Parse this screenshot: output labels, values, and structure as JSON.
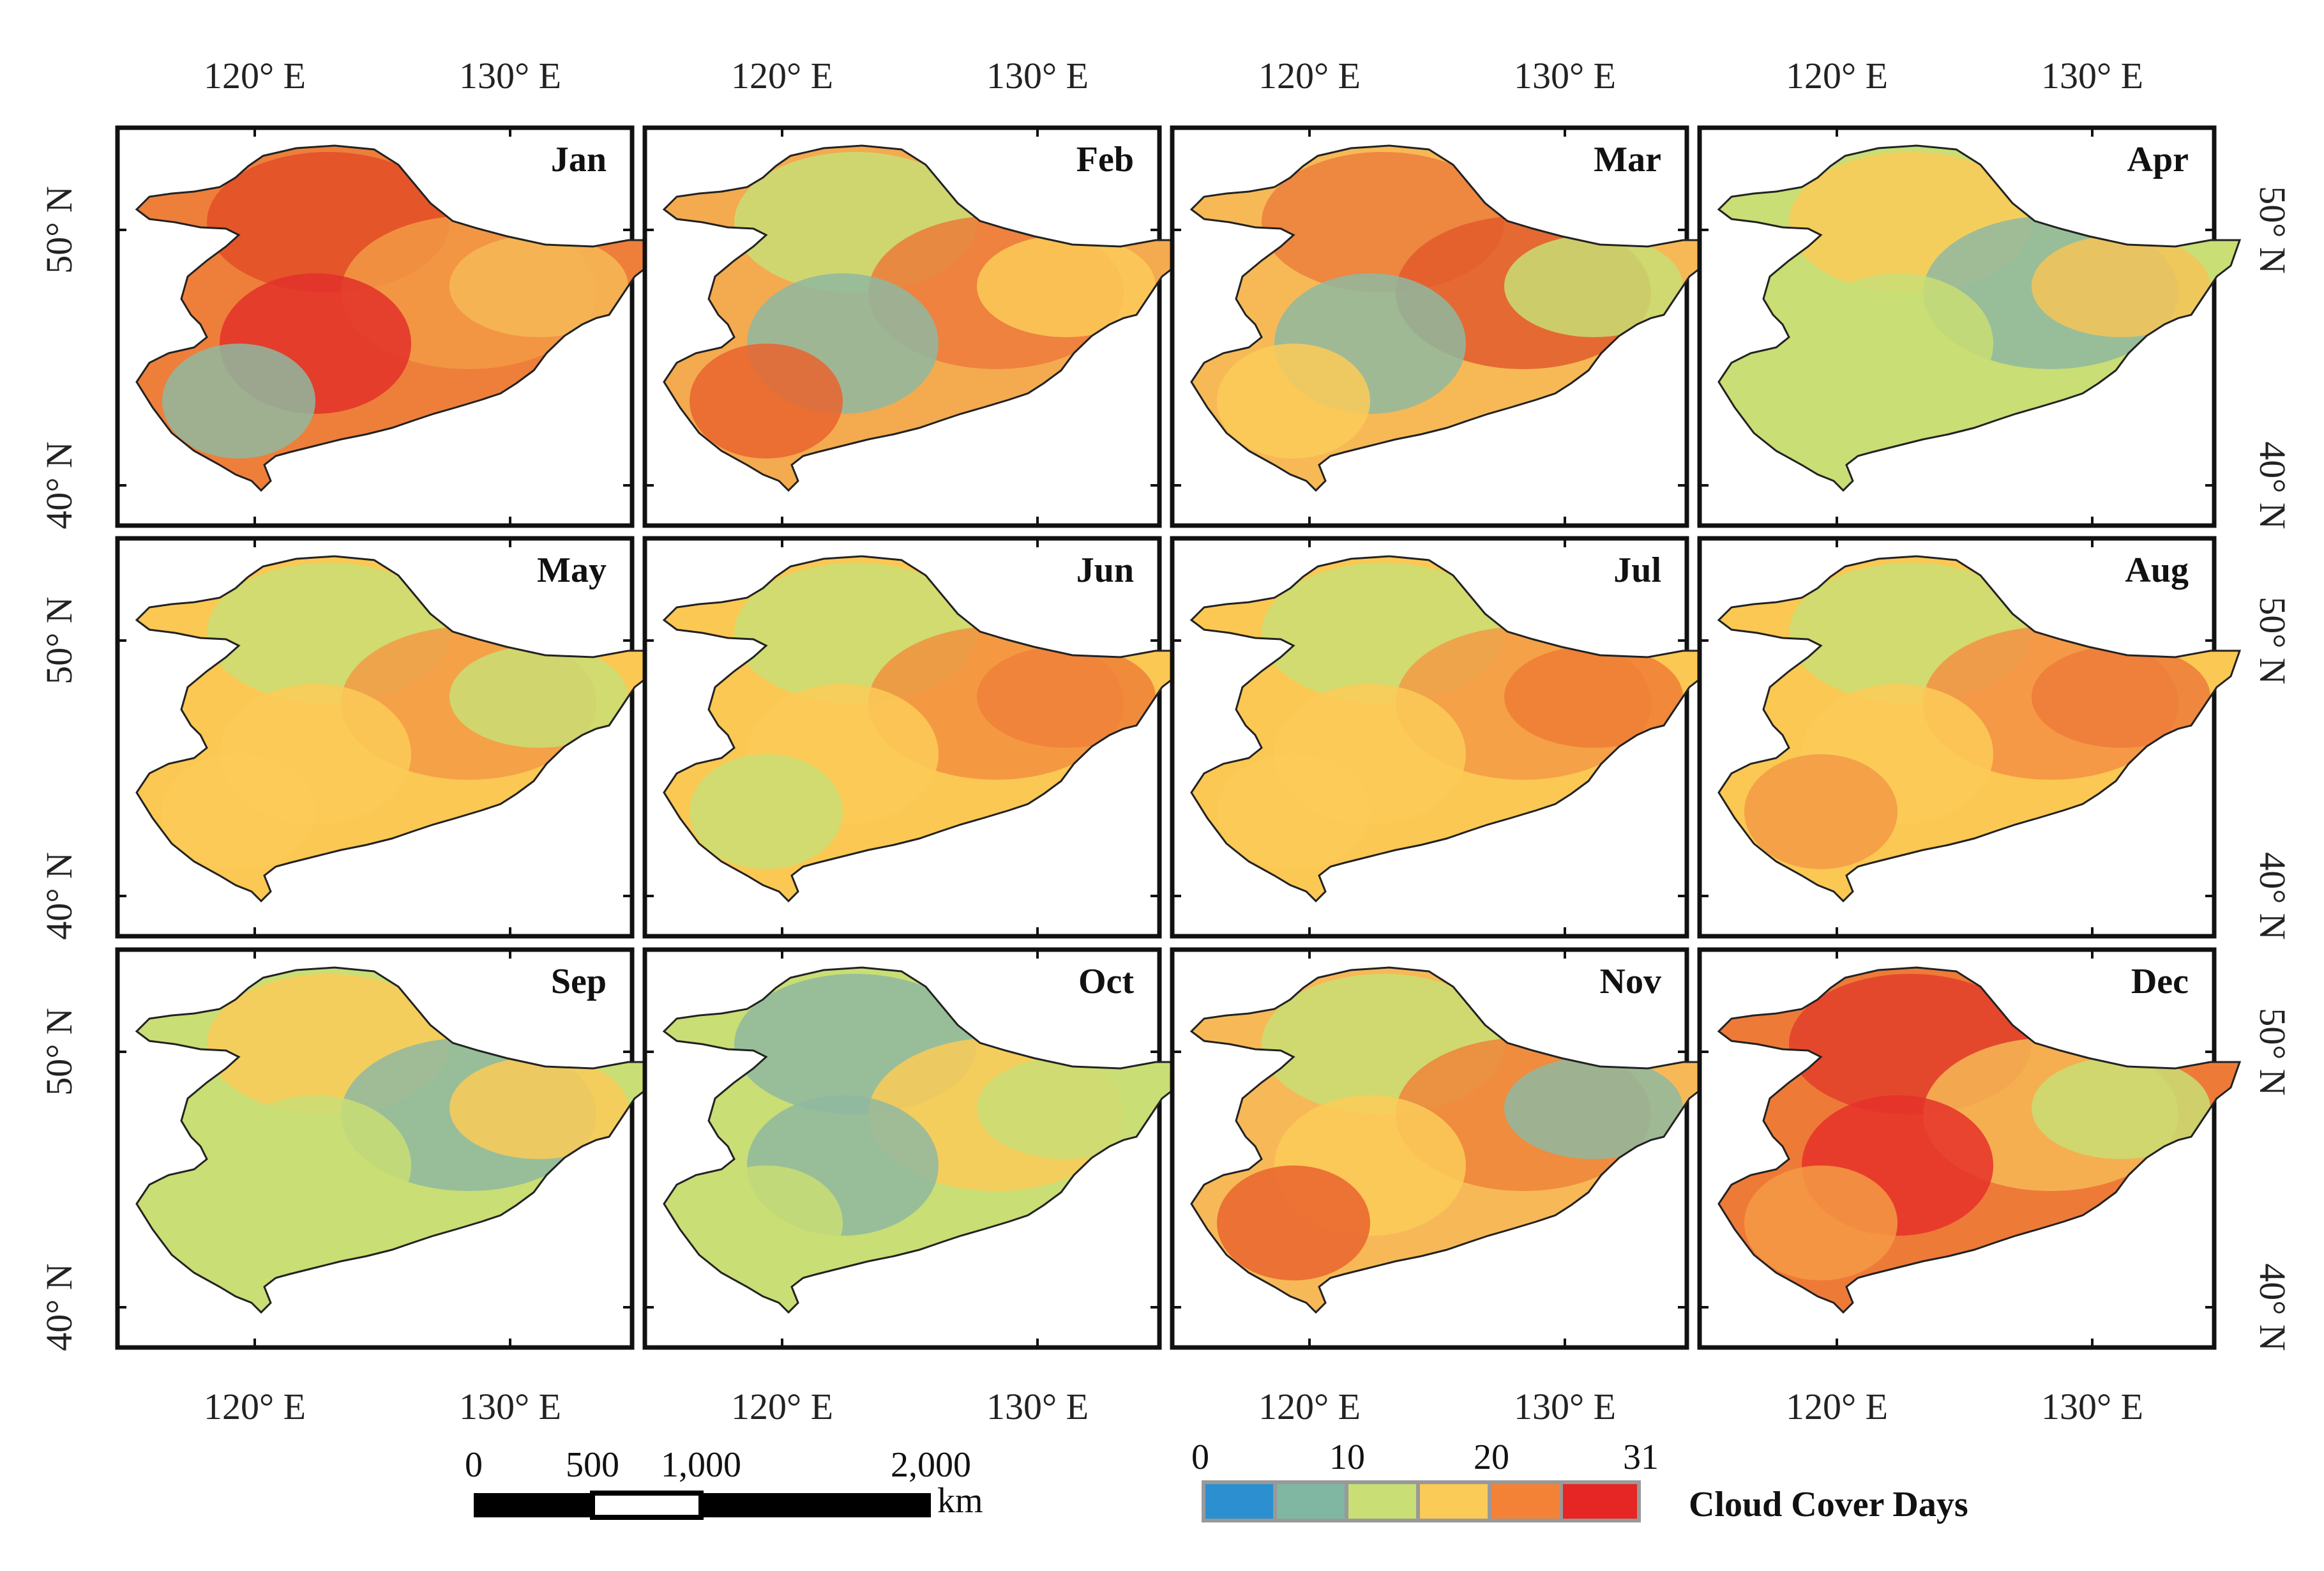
{
  "figure": {
    "months": [
      "Jan",
      "Feb",
      "Mar",
      "Apr",
      "May",
      "Jun",
      "Jul",
      "Aug",
      "Sep",
      "Oct",
      "Nov",
      "Dec"
    ],
    "lon_labels": [
      "120° E",
      "130° E"
    ],
    "lat_labels": [
      "50° N",
      "40° N"
    ]
  },
  "legend": {
    "title": "Cloud Cover Days",
    "ticks": [
      "0",
      "10",
      "20",
      "31"
    ],
    "colors": [
      "#2b8fd0",
      "#7fb7a3",
      "#c9de74",
      "#fbcb58",
      "#f48236",
      "#e52624"
    ]
  },
  "scale_bar": {
    "ticks": [
      "0",
      "500",
      "1,000",
      "2,000"
    ],
    "unit": "km"
  },
  "panels": [
    {
      "month": "Jan",
      "base": "#ee7f3a",
      "blobs": [
        "#e24d28",
        "#f39a45",
        "#e2312a",
        "#f6b856",
        "#8fb9a0"
      ]
    },
    {
      "month": "Feb",
      "base": "#f4aa4f",
      "blobs": [
        "#c9de74",
        "#ec7b3b",
        "#8fb9a0",
        "#fbcb58",
        "#e9642e"
      ]
    },
    {
      "month": "Mar",
      "base": "#f6b956",
      "blobs": [
        "#ec7e3c",
        "#e25a2c",
        "#8fb9a0",
        "#c9de74",
        "#fbcb58"
      ]
    },
    {
      "month": "Apr",
      "base": "#c9de74",
      "blobs": [
        "#fbcb58",
        "#8fb9a0",
        "#c9de74",
        "#f6c457",
        "#c9de74"
      ]
    },
    {
      "month": "May",
      "base": "#fbc853",
      "blobs": [
        "#c9de74",
        "#f39a45",
        "#fbcb58",
        "#c9de74",
        "#fbcb58"
      ]
    },
    {
      "month": "Jun",
      "base": "#fbc853",
      "blobs": [
        "#c9de74",
        "#f29140",
        "#fbcb58",
        "#ef8038",
        "#c9de74"
      ]
    },
    {
      "month": "Jul",
      "base": "#fbc853",
      "blobs": [
        "#c9de74",
        "#f39a45",
        "#fbcb58",
        "#ef7d36",
        "#fbcb58"
      ]
    },
    {
      "month": "Aug",
      "base": "#fbc853",
      "blobs": [
        "#c9de74",
        "#f39144",
        "#fbcb58",
        "#ec7b3b",
        "#f29a45"
      ]
    },
    {
      "month": "Sep",
      "base": "#c9de74",
      "blobs": [
        "#fbcb58",
        "#8fb9a0",
        "#c9de74",
        "#fbcb58",
        "#c9de74"
      ]
    },
    {
      "month": "Oct",
      "base": "#c9de74",
      "blobs": [
        "#8fb9a0",
        "#fbcb58",
        "#8fb9a0",
        "#c9de74",
        "#c9de74"
      ]
    },
    {
      "month": "Nov",
      "base": "#f7b957",
      "blobs": [
        "#c9de74",
        "#ef843a",
        "#fbcb58",
        "#8fb9a0",
        "#e9642e"
      ]
    },
    {
      "month": "Dec",
      "base": "#ee7a38",
      "blobs": [
        "#e2402a",
        "#f6b856",
        "#e5312a",
        "#c9de74",
        "#f39a45"
      ]
    }
  ]
}
